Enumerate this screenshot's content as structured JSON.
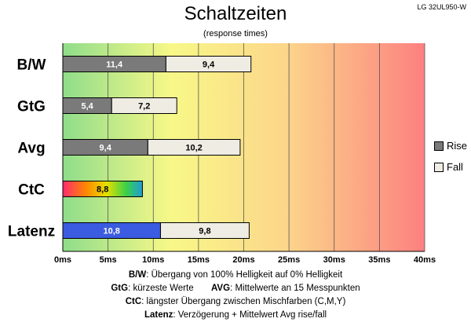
{
  "header": {
    "title": "Schaltzeiten",
    "subtitle": "(response times)",
    "model": "LG 32UL950-W"
  },
  "colors": {
    "rise": "#7a7a7a",
    "fall": "#efece4",
    "latenz": "#3b5be0",
    "gradient": [
      "#8fdd8a",
      "#f8f888",
      "#fcd58a",
      "#fc8080"
    ]
  },
  "chart_data": {
    "type": "bar",
    "orientation": "horizontal",
    "stacked": true,
    "categories": [
      "B/W",
      "GtG",
      "Avg",
      "CtC",
      "Latenz"
    ],
    "series": [
      {
        "name": "Rise",
        "values": [
          11.4,
          5.4,
          9.4,
          8.8,
          10.8
        ],
        "labels": [
          "11,4",
          "5,4",
          "9,4",
          "8,8",
          "10,8"
        ]
      },
      {
        "name": "Fall",
        "values": [
          9.4,
          7.2,
          10.2,
          null,
          9.8
        ],
        "labels": [
          "9,4",
          "7,2",
          "10,2",
          "",
          "9,8"
        ]
      }
    ],
    "xlim": [
      0,
      40
    ],
    "xticks": [
      "0ms",
      "5ms",
      "10ms",
      "15ms",
      "20ms",
      "25ms",
      "30ms",
      "35ms",
      "40ms"
    ],
    "grid": true,
    "legend_position": "right"
  },
  "footnotes": [
    {
      "key": "B/W",
      "text": ":  Übergang von 100% Helligkeit auf 0% Helligkeit"
    },
    {
      "key": "GtG",
      "text": ": kürzeste  Werte",
      "key2": "AVG",
      "text2": ": Mittelwerte  an 15 Messpunkten"
    },
    {
      "key": "CtC",
      "text": ": längster Übergang  zwischen Mischfarben (C,M,Y)"
    },
    {
      "key": "Latenz",
      "text": ": Verzögerung  + Mittelwert  Avg rise/fall"
    }
  ]
}
